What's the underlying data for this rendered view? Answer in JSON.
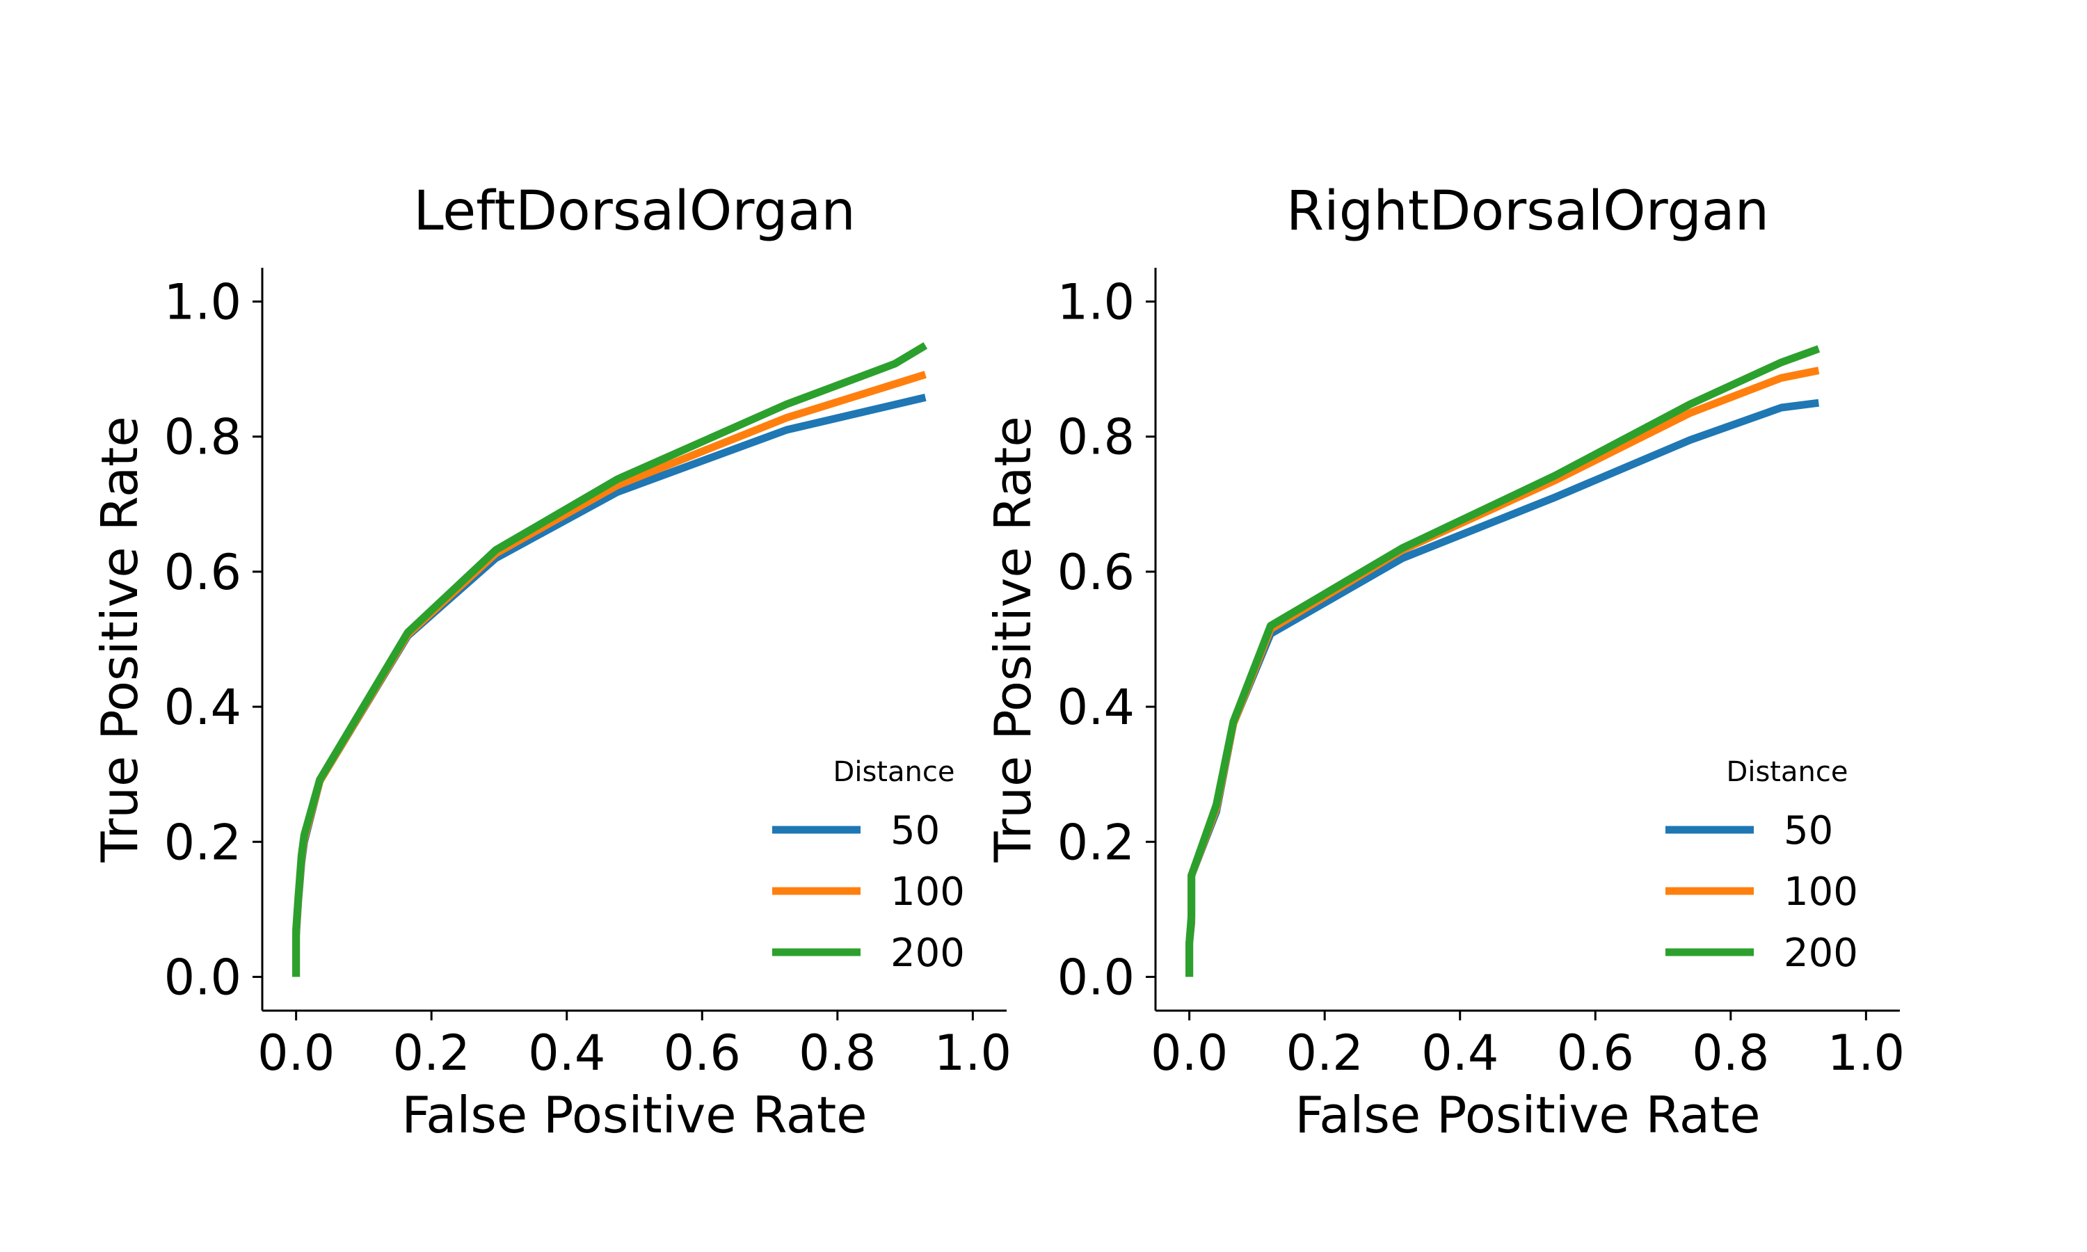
{
  "colors": {
    "50": "#1f77b4",
    "100": "#ff7f0e",
    "200": "#2ca02c"
  },
  "chart_data": [
    {
      "type": "line",
      "title": "LeftDorsalOrgan",
      "xlabel": "False Positive Rate",
      "ylabel": "True Positive Rate",
      "xlim": [
        -0.05,
        1.05
      ],
      "ylim": [
        -0.05,
        1.05
      ],
      "xticks": [
        "0.0",
        "0.2",
        "0.4",
        "0.6",
        "0.8",
        "1.0"
      ],
      "yticks": [
        "0.0",
        "0.2",
        "0.4",
        "0.6",
        "0.8",
        "1.0"
      ],
      "grid": false,
      "legend": {
        "title": "Distance",
        "position": "lower-right"
      },
      "series": [
        {
          "name": "50",
          "color": "#1f77b4",
          "x": [
            0.0,
            0.0,
            0.003,
            0.008,
            0.012,
            0.035,
            0.165,
            0.295,
            0.475,
            0.725,
            0.93
          ],
          "y": [
            0.0,
            0.06,
            0.11,
            0.17,
            0.2,
            0.29,
            0.505,
            0.62,
            0.718,
            0.81,
            0.858
          ]
        },
        {
          "name": "100",
          "color": "#ff7f0e",
          "x": [
            0.0,
            0.0,
            0.003,
            0.008,
            0.012,
            0.035,
            0.165,
            0.295,
            0.475,
            0.725,
            0.93
          ],
          "y": [
            0.0,
            0.065,
            0.113,
            0.175,
            0.205,
            0.29,
            0.507,
            0.627,
            0.728,
            0.828,
            0.892
          ]
        },
        {
          "name": "200",
          "color": "#2ca02c",
          "x": [
            0.0,
            0.0,
            0.003,
            0.008,
            0.012,
            0.035,
            0.165,
            0.295,
            0.475,
            0.725,
            0.885,
            0.93
          ],
          "y": [
            0.0,
            0.07,
            0.115,
            0.18,
            0.21,
            0.292,
            0.51,
            0.632,
            0.737,
            0.848,
            0.908,
            0.935
          ]
        }
      ]
    },
    {
      "type": "line",
      "title": "RightDorsalOrgan",
      "xlabel": "False Positive Rate",
      "ylabel": "True Positive Rate",
      "xlim": [
        -0.05,
        1.05
      ],
      "ylim": [
        -0.05,
        1.05
      ],
      "xticks": [
        "0.0",
        "0.2",
        "0.4",
        "0.6",
        "0.8",
        "1.0"
      ],
      "yticks": [
        "0.0",
        "0.2",
        "0.4",
        "0.6",
        "0.8",
        "1.0"
      ],
      "grid": false,
      "legend": {
        "title": "Distance",
        "position": "lower-right"
      },
      "series": [
        {
          "name": "50",
          "color": "#1f77b4",
          "x": [
            0.0,
            0.0,
            0.003,
            0.003,
            0.04,
            0.065,
            0.12,
            0.315,
            0.54,
            0.74,
            0.875,
            0.93
          ],
          "y": [
            0.0,
            0.05,
            0.08,
            0.15,
            0.245,
            0.375,
            0.508,
            0.62,
            0.71,
            0.795,
            0.843,
            0.85
          ]
        },
        {
          "name": "100",
          "color": "#ff7f0e",
          "x": [
            0.0,
            0.0,
            0.003,
            0.003,
            0.04,
            0.065,
            0.12,
            0.315,
            0.54,
            0.74,
            0.875,
            0.93
          ],
          "y": [
            0.0,
            0.05,
            0.085,
            0.15,
            0.25,
            0.375,
            0.515,
            0.632,
            0.735,
            0.835,
            0.887,
            0.898
          ]
        },
        {
          "name": "200",
          "color": "#2ca02c",
          "x": [
            0.0,
            0.0,
            0.003,
            0.003,
            0.04,
            0.065,
            0.12,
            0.315,
            0.54,
            0.74,
            0.875,
            0.93
          ],
          "y": [
            0.0,
            0.05,
            0.09,
            0.15,
            0.255,
            0.378,
            0.52,
            0.635,
            0.742,
            0.848,
            0.91,
            0.93
          ]
        }
      ]
    }
  ]
}
